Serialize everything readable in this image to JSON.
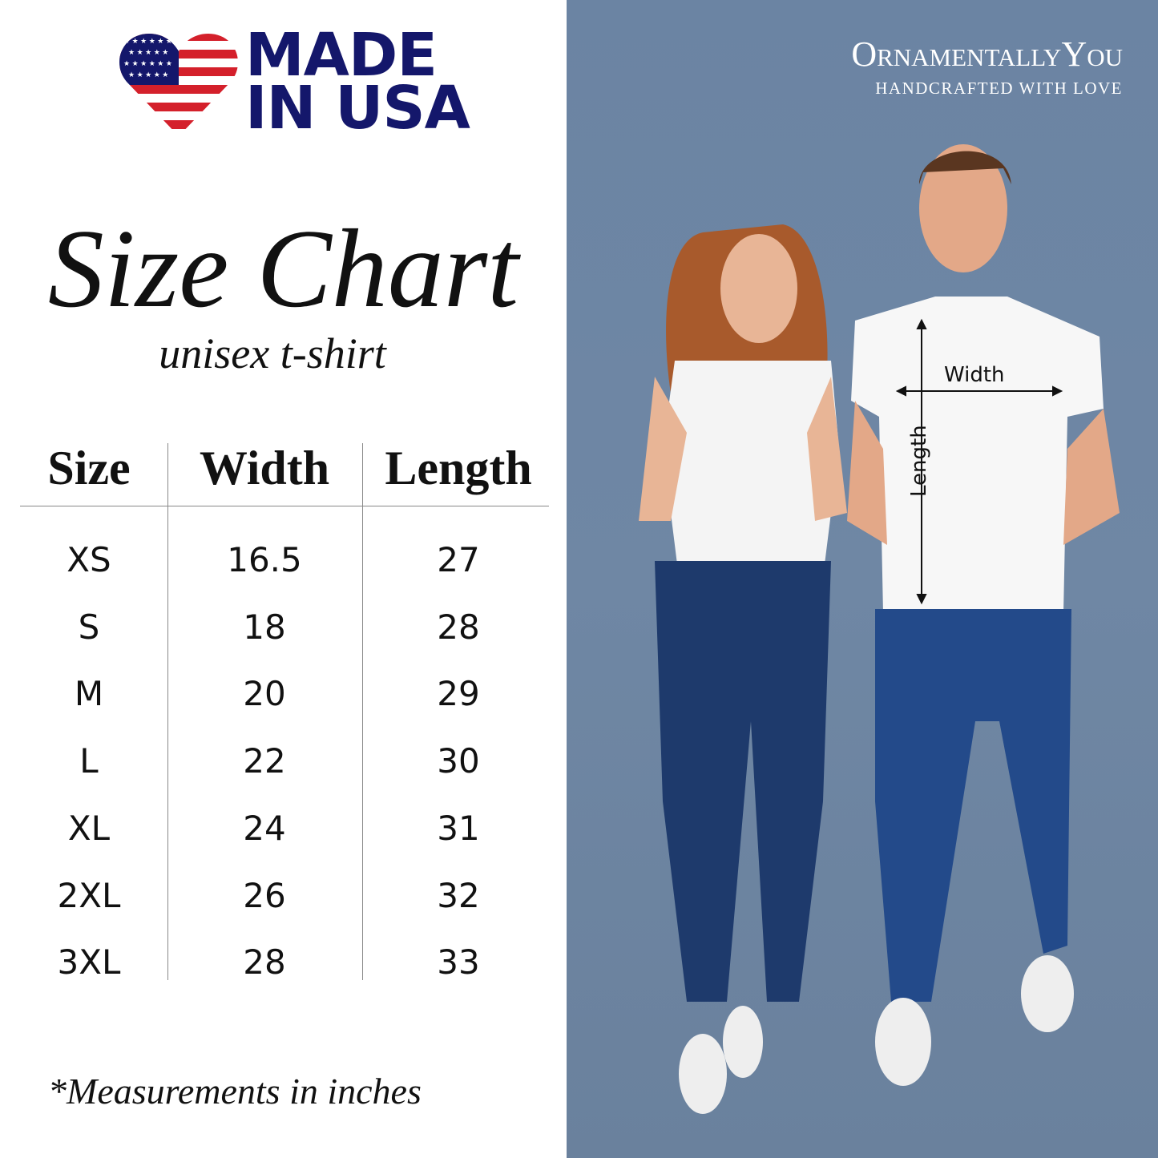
{
  "logo": {
    "text_line1": "MADE",
    "text_line2": "IN USA",
    "flag_colors": {
      "blue": "#14176b",
      "red": "#d4202b"
    }
  },
  "title": "Size Chart",
  "subtitle": "unisex t-shirt",
  "chart_data": {
    "type": "table",
    "columns": [
      "Size",
      "Width",
      "Length"
    ],
    "rows": [
      [
        "XS",
        "16.5",
        "27"
      ],
      [
        "S",
        "18",
        "28"
      ],
      [
        "M",
        "20",
        "29"
      ],
      [
        "L",
        "22",
        "30"
      ],
      [
        "XL",
        "24",
        "31"
      ],
      [
        "2XL",
        "26",
        "32"
      ],
      [
        "3XL",
        "28",
        "33"
      ]
    ]
  },
  "footnote": "*Measurements in inches",
  "brand": {
    "name": "OrnamentallyYou",
    "tagline": "HANDCRAFTED WITH LOVE"
  },
  "photo": {
    "width_label": "Width",
    "length_label": "Length",
    "background": "#6b84a3"
  }
}
